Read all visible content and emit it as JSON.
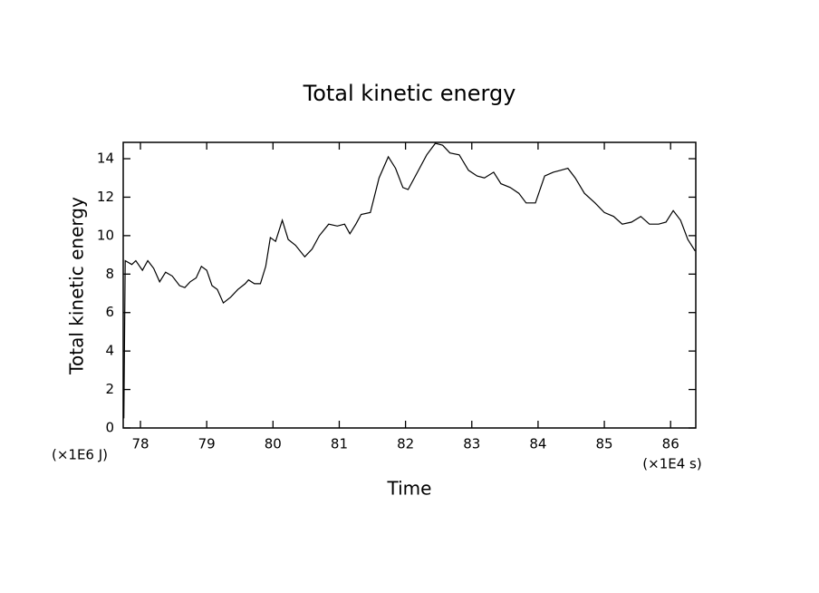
{
  "chart_data": {
    "type": "line",
    "title": "Total kinetic energy",
    "x_label": "Time",
    "y_label": "Total kinetic energy",
    "x_unit": "(×1E4 s)",
    "y_unit": "(×1E6 J)",
    "xlim": [
      77.74,
      86.38
    ],
    "ylim": [
      0,
      14.85
    ],
    "xticks": [
      78,
      79,
      80,
      81,
      82,
      83,
      84,
      85,
      86
    ],
    "yticks": [
      0,
      2,
      4,
      6,
      8,
      10,
      12,
      14
    ],
    "series": [
      {
        "color": "#000000",
        "x": [
          77.75,
          77.77,
          77.87,
          77.93,
          78.03,
          78.11,
          78.2,
          78.29,
          78.38,
          78.48,
          78.59,
          78.67,
          78.75,
          78.84,
          78.92,
          79.0,
          79.08,
          79.16,
          79.25,
          79.36,
          79.47,
          79.58,
          79.63,
          79.72,
          79.81,
          79.89,
          79.96,
          80.04,
          80.14,
          80.23,
          80.34,
          80.48,
          80.59,
          80.7,
          80.84,
          80.97,
          81.08,
          81.16,
          81.25,
          81.33,
          81.47,
          81.6,
          81.74,
          81.85,
          81.96,
          82.04,
          82.18,
          82.32,
          82.45,
          82.56,
          82.67,
          82.81,
          82.95,
          83.08,
          83.19,
          83.33,
          83.44,
          83.58,
          83.71,
          83.82,
          83.96,
          84.1,
          84.23,
          84.34,
          84.45,
          84.56,
          84.7,
          84.86,
          85.0,
          85.14,
          85.27,
          85.41,
          85.55,
          85.68,
          85.82,
          85.93,
          86.04,
          86.15,
          86.26,
          86.37
        ],
        "values": [
          0.5,
          8.7,
          8.5,
          8.7,
          8.2,
          8.7,
          8.3,
          7.6,
          8.1,
          7.9,
          7.4,
          7.3,
          7.6,
          7.8,
          8.4,
          8.2,
          7.4,
          7.2,
          6.5,
          6.8,
          7.2,
          7.5,
          7.7,
          7.5,
          7.5,
          8.4,
          9.9,
          9.7,
          10.8,
          9.8,
          9.5,
          8.9,
          9.3,
          10.0,
          10.6,
          10.5,
          10.6,
          10.1,
          10.6,
          11.1,
          11.2,
          13.0,
          14.1,
          13.5,
          12.5,
          12.4,
          13.3,
          14.2,
          14.8,
          14.7,
          14.3,
          14.2,
          13.4,
          13.1,
          13.0,
          13.3,
          12.7,
          12.5,
          12.2,
          11.7,
          11.7,
          13.1,
          13.3,
          13.4,
          13.5,
          13.0,
          12.2,
          11.7,
          11.2,
          11.0,
          10.6,
          10.7,
          11.0,
          10.6,
          10.6,
          10.7,
          11.3,
          10.8,
          9.8,
          9.2
        ]
      }
    ]
  }
}
